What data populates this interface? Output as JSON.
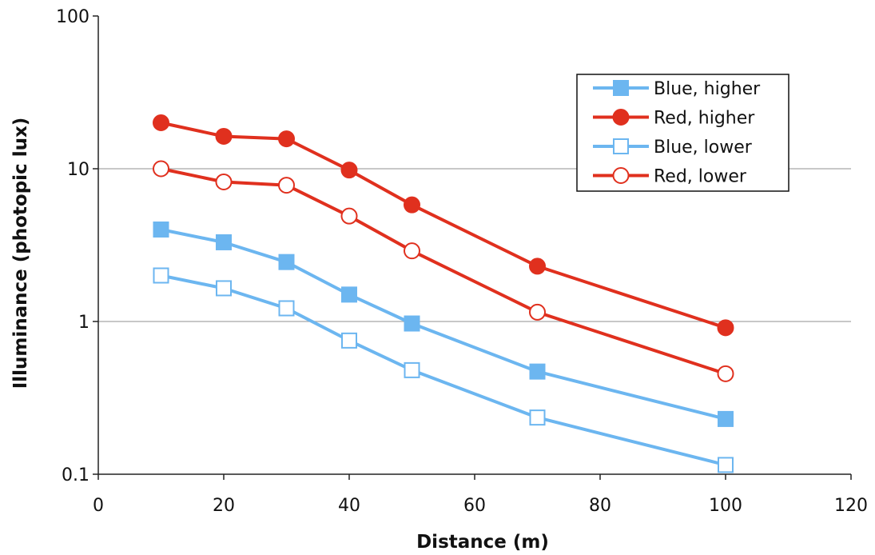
{
  "chart_data": {
    "type": "line",
    "xlabel": "Distance (m)",
    "ylabel": "Illuminance (photopic lux)",
    "xlim": [
      0,
      120
    ],
    "ylim": [
      0.1,
      100
    ],
    "yscale": "log",
    "x_ticks": [
      0,
      20,
      40,
      60,
      80,
      100,
      120
    ],
    "y_ticks": [
      0.1,
      1,
      10,
      100
    ],
    "x_tick_labels": [
      "0",
      "20",
      "40",
      "60",
      "80",
      "100",
      "120"
    ],
    "y_tick_labels": [
      "0.1",
      "1",
      "10",
      "100"
    ],
    "grid": "horizontal major gridlines",
    "legend_position": "top-right",
    "series": [
      {
        "name": "Blue, higher",
        "color": "#6cb6f0",
        "marker": "square-filled",
        "x": [
          10,
          20,
          30,
          40,
          50,
          70,
          100
        ],
        "y": [
          4.0,
          3.3,
          2.45,
          1.5,
          0.97,
          0.47,
          0.23
        ]
      },
      {
        "name": "Red, higher",
        "color": "#e0301e",
        "marker": "circle-filled",
        "x": [
          10,
          20,
          30,
          40,
          50,
          70,
          100
        ],
        "y": [
          20,
          16.3,
          15.7,
          9.8,
          5.8,
          2.3,
          0.91
        ]
      },
      {
        "name": "Blue, lower",
        "color": "#6cb6f0",
        "marker": "square-open",
        "x": [
          10,
          20,
          30,
          40,
          50,
          70,
          100
        ],
        "y": [
          2.0,
          1.65,
          1.22,
          0.75,
          0.48,
          0.235,
          0.115
        ]
      },
      {
        "name": "Red, lower",
        "color": "#e0301e",
        "marker": "circle-open",
        "x": [
          10,
          20,
          30,
          40,
          50,
          70,
          100
        ],
        "y": [
          10,
          8.2,
          7.8,
          4.9,
          2.9,
          1.15,
          0.455
        ]
      }
    ]
  }
}
